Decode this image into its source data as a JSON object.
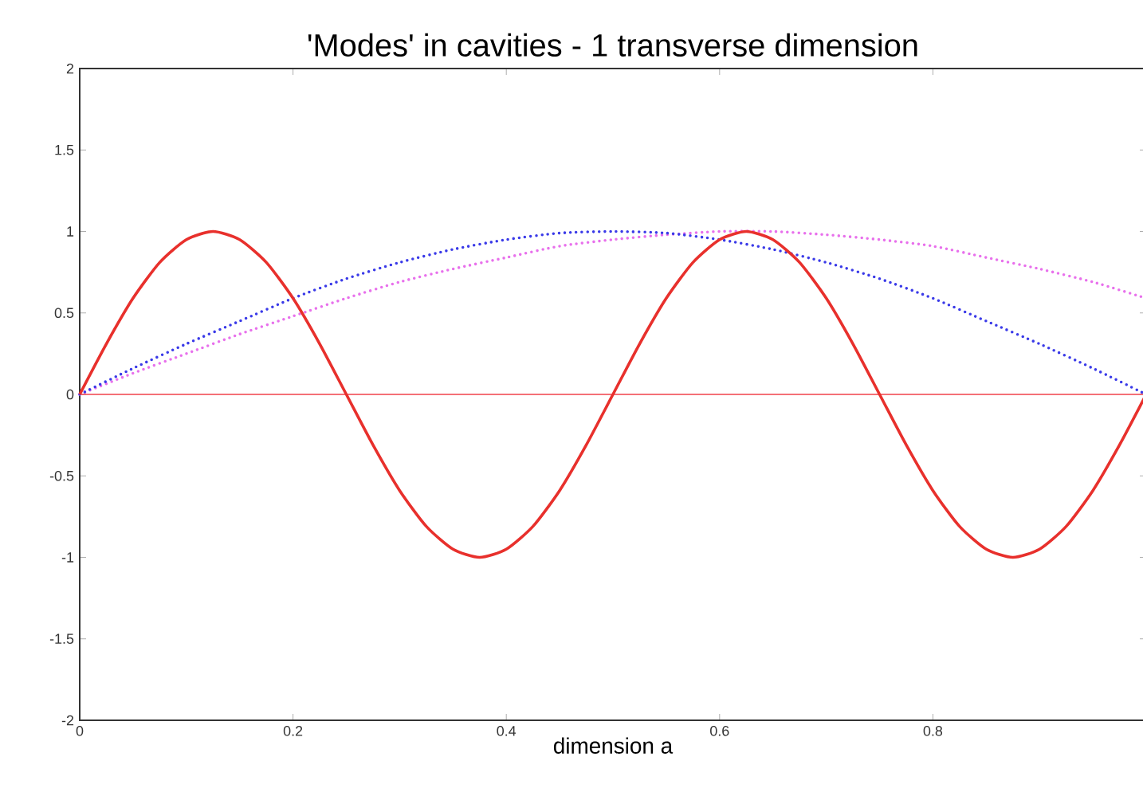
{
  "chart_data": {
    "type": "line",
    "title": "'Modes' in cavities - 1 transverse dimension",
    "xlabel": "dimension   a",
    "xlim": [
      0,
      1
    ],
    "ylim": [
      -2,
      2
    ],
    "xticks": [
      0,
      0.2,
      0.4,
      0.6,
      0.8
    ],
    "yticks": [
      -2,
      -1.5,
      -1,
      -0.5,
      0,
      0.5,
      1,
      1.5,
      2
    ],
    "grid": false,
    "marker": "none",
    "ref_lines": [
      {
        "axis": "y",
        "value": 0,
        "color": "#f0404a"
      }
    ],
    "series": [
      {
        "color": "#e8302c",
        "line_style": "solid",
        "x": [
          0,
          0.025,
          0.05,
          0.075,
          0.1,
          0.125,
          0.15,
          0.175,
          0.2,
          0.225,
          0.25,
          0.275,
          0.3,
          0.325,
          0.35,
          0.375,
          0.4,
          0.425,
          0.45,
          0.475,
          0.5,
          0.525,
          0.55,
          0.575,
          0.6,
          0.625,
          0.65,
          0.675,
          0.7,
          0.725,
          0.75,
          0.775,
          0.8,
          0.825,
          0.85,
          0.875,
          0.9,
          0.925,
          0.95,
          0.975,
          1
        ],
        "values": [
          0,
          0.31,
          0.59,
          0.81,
          0.95,
          1,
          0.95,
          0.81,
          0.59,
          0.31,
          0,
          -0.31,
          -0.59,
          -0.81,
          -0.95,
          -1,
          -0.95,
          -0.81,
          -0.59,
          -0.31,
          0,
          0.31,
          0.59,
          0.81,
          0.95,
          1,
          0.95,
          0.81,
          0.59,
          0.31,
          0,
          -0.31,
          -0.59,
          -0.81,
          -0.95,
          -1,
          -0.95,
          -0.81,
          -0.59,
          -0.31,
          0
        ]
      },
      {
        "color": "#3a3ae8",
        "line_style": "dotted",
        "x": [
          0,
          0.05,
          0.1,
          0.15,
          0.2,
          0.25,
          0.3,
          0.35,
          0.4,
          0.45,
          0.5,
          0.55,
          0.6,
          0.65,
          0.7,
          0.75,
          0.8,
          0.85,
          0.9,
          0.95,
          1
        ],
        "values": [
          0,
          0.16,
          0.31,
          0.45,
          0.59,
          0.71,
          0.81,
          0.89,
          0.95,
          0.99,
          1,
          0.99,
          0.95,
          0.89,
          0.81,
          0.71,
          0.59,
          0.45,
          0.31,
          0.16,
          0
        ]
      },
      {
        "color": "#e870ec",
        "line_style": "dotted",
        "x": [
          0,
          0.05,
          0.1,
          0.15,
          0.2,
          0.25,
          0.3,
          0.35,
          0.4,
          0.45,
          0.5,
          0.55,
          0.6,
          0.65,
          0.7,
          0.75,
          0.8,
          0.85,
          0.9,
          0.95,
          1
        ],
        "values": [
          0,
          0.13,
          0.25,
          0.37,
          0.48,
          0.59,
          0.69,
          0.77,
          0.84,
          0.91,
          0.95,
          0.98,
          1,
          1,
          0.98,
          0.95,
          0.91,
          0.84,
          0.77,
          0.69,
          0.59
        ]
      }
    ]
  }
}
